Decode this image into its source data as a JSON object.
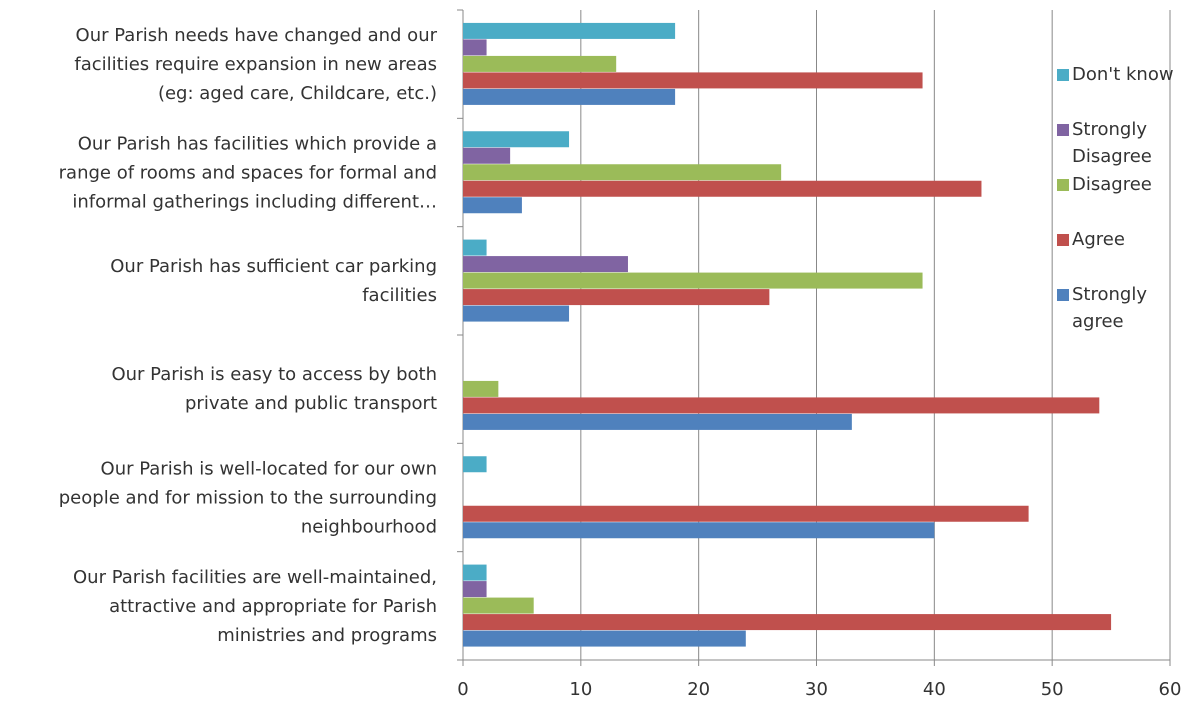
{
  "chart_data": {
    "type": "hbar",
    "categories": [
      "Our Parish needs have changed and our\nfacilities require expansion in new areas\n(eg: aged care, Childcare, etc.)",
      "Our Parish has facilities which provide a\nrange of rooms and spaces for formal and\ninformal gatherings including different…",
      "Our Parish has sufficient car parking\nfacilities",
      "Our Parish is easy to access by both\nprivate and public transport",
      "Our Parish is well-located for our own\npeople and for mission to the surrounding\nneighbourhood",
      "Our Parish facilities are well-maintained,\nattractive and appropriate for Parish\nministries and programs"
    ],
    "series": [
      {
        "name": "Don't know",
        "color": "#4bacc6",
        "values": [
          18,
          9,
          2,
          0,
          2,
          2
        ]
      },
      {
        "name": "Strongly Disagree",
        "color": "#8064a2",
        "values": [
          2,
          4,
          14,
          0,
          0,
          2
        ]
      },
      {
        "name": "Disagree",
        "color": "#9bbb59",
        "values": [
          13,
          27,
          39,
          3,
          0,
          6
        ]
      },
      {
        "name": "Agree",
        "color": "#c0504d",
        "values": [
          39,
          44,
          26,
          54,
          48,
          55
        ]
      },
      {
        "name": "Strongly agree",
        "color": "#4f81bd",
        "values": [
          18,
          5,
          9,
          33,
          40,
          24
        ]
      }
    ],
    "xlim": [
      0,
      60
    ],
    "xticks": [
      0,
      10,
      20,
      30,
      40,
      50,
      60
    ],
    "grid": true,
    "legend": "right"
  }
}
